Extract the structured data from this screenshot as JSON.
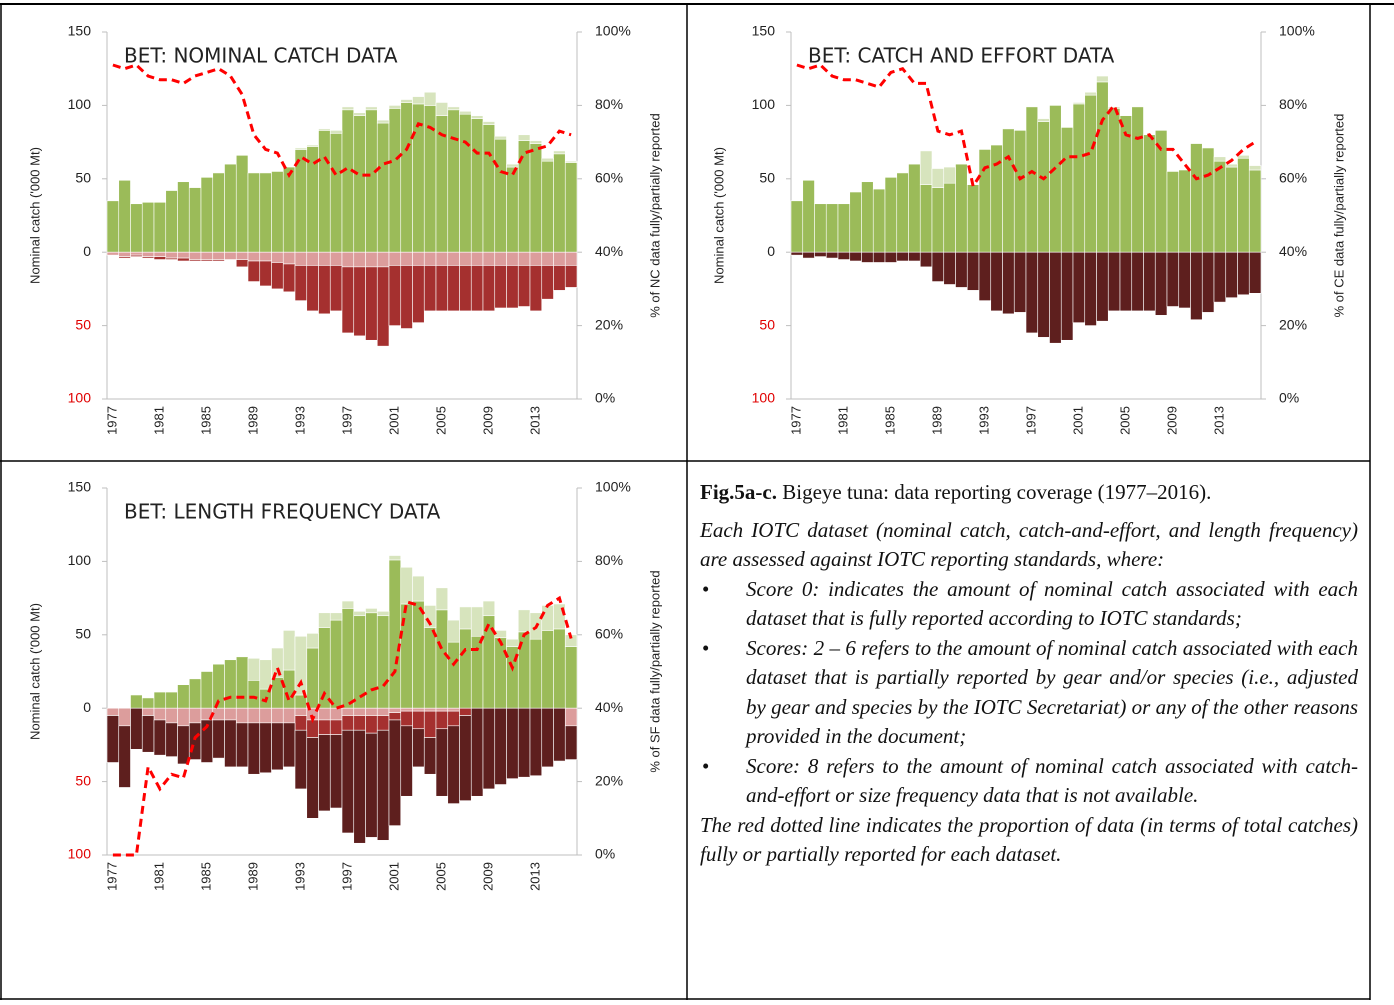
{
  "chart_data": [
    {
      "type": "bar",
      "stacked": true,
      "title": "BET: NOMINAL CATCH DATA",
      "y_label": "Nominal catch ('000 Mt)",
      "y2_label": "% of NC data fully/partially reported",
      "categories": [
        "1977",
        null,
        null,
        null,
        "1981",
        null,
        null,
        null,
        "1985",
        null,
        null,
        null,
        "1989",
        null,
        null,
        null,
        "1993",
        null,
        null,
        null,
        "1997",
        null,
        null,
        null,
        "2001",
        null,
        null,
        null,
        "2005",
        null,
        null,
        null,
        "2009",
        null,
        null,
        null,
        "2013",
        null,
        null,
        null
      ],
      "ylim": [
        -100,
        150
      ],
      "yticks": [
        {
          "value": -100,
          "label": "100",
          "color": "#e00000"
        },
        {
          "value": -50,
          "label": "50",
          "color": "#e00000"
        },
        0,
        50,
        100,
        150
      ],
      "y2lim": [
        0,
        100
      ],
      "y2ticks": [
        {
          "value": 0,
          "label": "0%"
        },
        {
          "value": 20,
          "label": "20%"
        },
        {
          "value": 40,
          "label": "40%"
        },
        {
          "value": 60,
          "label": "60%"
        },
        {
          "value": 80,
          "label": "80%"
        },
        {
          "value": 100,
          "label": "100%"
        }
      ],
      "series": [
        {
          "color": "#9bbb59",
          "values": [
            35,
            49,
            33,
            34,
            34,
            42,
            48,
            44,
            51,
            54,
            60,
            66,
            54,
            54,
            55,
            58,
            70,
            72,
            83,
            81,
            97,
            93,
            97,
            88,
            98,
            102,
            101,
            100,
            93,
            97,
            94,
            91,
            87,
            77,
            58,
            76,
            74,
            62,
            67,
            61
          ]
        },
        {
          "color": "#d7e4bd",
          "values": [
            0,
            0,
            0,
            0,
            0,
            0,
            0,
            0,
            0,
            0,
            0,
            0,
            0,
            0,
            0,
            0,
            1,
            1,
            1,
            2,
            2,
            2,
            2,
            2,
            2,
            2,
            5,
            9,
            9,
            2,
            2,
            2,
            2,
            2,
            2,
            4,
            2,
            2,
            2,
            1
          ]
        },
        {
          "color": "#dc9d9c",
          "values": [
            -2,
            -3,
            -2,
            -3,
            -3,
            -4,
            -4,
            -5,
            -5,
            -5,
            -5,
            -5,
            -6,
            -6,
            -7,
            -8,
            -9,
            -9,
            -9,
            -9,
            -10,
            -10,
            -10,
            -10,
            -9,
            -9,
            -9,
            -9,
            -9,
            -9,
            -9,
            -9,
            -9,
            -9,
            -9,
            -9,
            -9,
            -9,
            -9,
            -9
          ]
        },
        {
          "color": "#a5302f",
          "values": [
            0,
            -1,
            -1,
            -1,
            -2,
            -1,
            -2,
            -1,
            -1,
            -1,
            0,
            -5,
            -14,
            -17,
            -18,
            -19,
            -24,
            -31,
            -33,
            -31,
            -45,
            -47,
            -50,
            -54,
            -41,
            -43,
            -39,
            -31,
            -31,
            -31,
            -31,
            -31,
            -31,
            -29,
            -29,
            -28,
            -31,
            -23,
            -17,
            -15
          ]
        },
        {
          "type": "line",
          "axis": "y2",
          "color": "#ff0000",
          "linestyle": "dashed",
          "values": [
            91,
            90,
            91,
            88,
            87,
            87,
            86,
            88,
            89,
            90,
            88,
            83,
            72,
            68,
            67,
            61,
            66,
            64,
            66,
            61,
            63,
            61,
            61,
            64,
            65,
            68,
            75,
            74,
            72,
            71,
            70,
            67,
            67,
            62,
            61,
            67,
            68,
            69,
            73,
            72
          ]
        }
      ]
    },
    {
      "type": "bar",
      "stacked": true,
      "title": "BET: CATCH AND EFFORT DATA",
      "y_label": "Nominal catch ('000 Mt)",
      "y2_label": "% of CE data fully/partially reported",
      "categories": [
        "1977",
        null,
        null,
        null,
        "1981",
        null,
        null,
        null,
        "1985",
        null,
        null,
        null,
        "1989",
        null,
        null,
        null,
        "1993",
        null,
        null,
        null,
        "1997",
        null,
        null,
        null,
        "2001",
        null,
        null,
        null,
        "2005",
        null,
        null,
        null,
        "2009",
        null,
        null,
        null,
        "2013",
        null,
        null,
        null
      ],
      "ylim": [
        -100,
        150
      ],
      "yticks": [
        {
          "value": -100,
          "label": "100",
          "color": "#e00000"
        },
        {
          "value": -50,
          "label": "50",
          "color": "#e00000"
        },
        0,
        50,
        100,
        150
      ],
      "y2lim": [
        0,
        100
      ],
      "y2ticks": [
        {
          "value": 0,
          "label": "0%"
        },
        {
          "value": 20,
          "label": "20%"
        },
        {
          "value": 40,
          "label": "40%"
        },
        {
          "value": 60,
          "label": "60%"
        },
        {
          "value": 80,
          "label": "80%"
        },
        {
          "value": 100,
          "label": "100%"
        }
      ],
      "series": [
        {
          "color": "#9bbb59",
          "values": [
            35,
            49,
            33,
            33,
            33,
            41,
            48,
            43,
            51,
            54,
            60,
            46,
            44,
            47,
            60,
            46,
            70,
            73,
            84,
            83,
            99,
            89,
            100,
            85,
            101,
            107,
            116,
            98,
            93,
            99,
            80,
            83,
            55,
            56,
            74,
            71,
            62,
            58,
            64,
            56
          ]
        },
        {
          "color": "#d7e4bd",
          "values": [
            0,
            0,
            0,
            0,
            0,
            0,
            0,
            0,
            0,
            0,
            0,
            23,
            13,
            11,
            0,
            0,
            0,
            0,
            0,
            0,
            0,
            2,
            0,
            0,
            1,
            2,
            4,
            1,
            0,
            0,
            0,
            0,
            0,
            0,
            0,
            0,
            3,
            2,
            2,
            3
          ]
        },
        {
          "color": "#5e1f1e",
          "values": [
            -2,
            -4,
            -3,
            -4,
            -5,
            -6,
            -7,
            -7,
            -7,
            -6,
            -6,
            -10,
            -20,
            -22,
            -24,
            -26,
            -33,
            -40,
            -42,
            -41,
            -55,
            -58,
            -62,
            -60,
            -48,
            -50,
            -47,
            -40,
            -40,
            -40,
            -40,
            -43,
            -37,
            -38,
            -46,
            -41,
            -34,
            -31,
            -29,
            -28
          ]
        },
        {
          "type": "line",
          "axis": "y2",
          "color": "#ff0000",
          "linestyle": "dashed",
          "values": [
            91,
            90,
            91,
            88,
            87,
            87,
            86,
            85,
            89,
            90,
            86,
            86,
            73,
            72,
            73,
            58,
            63,
            64,
            66,
            60,
            62,
            60,
            63,
            66,
            66,
            67,
            76,
            80,
            72,
            71,
            72,
            68,
            68,
            64,
            60,
            61,
            63,
            65,
            68,
            70
          ]
        }
      ]
    },
    {
      "type": "bar",
      "stacked": true,
      "title": "BET: LENGTH FREQUENCY DATA",
      "y_label": "Nominal catch ('000 Mt)",
      "y2_label": "% of SF data fully/partially reported",
      "categories": [
        "1977",
        null,
        null,
        null,
        "1981",
        null,
        null,
        null,
        "1985",
        null,
        null,
        null,
        "1989",
        null,
        null,
        null,
        "1993",
        null,
        null,
        null,
        "1997",
        null,
        null,
        null,
        "2001",
        null,
        null,
        null,
        "2005",
        null,
        null,
        null,
        "2009",
        null,
        null,
        null,
        "2013",
        null,
        null,
        null
      ],
      "ylim": [
        -100,
        150
      ],
      "yticks": [
        {
          "value": -100,
          "label": "100",
          "color": "#e00000"
        },
        {
          "value": -50,
          "label": "50",
          "color": "#e00000"
        },
        0,
        50,
        100,
        150
      ],
      "y2lim": [
        0,
        100
      ],
      "y2ticks": [
        {
          "value": 0,
          "label": "0%"
        },
        {
          "value": 20,
          "label": "20%"
        },
        {
          "value": 40,
          "label": "40%"
        },
        {
          "value": 60,
          "label": "60%"
        },
        {
          "value": 80,
          "label": "80%"
        },
        {
          "value": 100,
          "label": "100%"
        }
      ],
      "series": [
        {
          "color": "#9bbb59",
          "values": [
            0,
            0,
            9,
            7,
            11,
            11,
            16,
            20,
            25,
            30,
            33,
            35,
            19,
            13,
            21,
            26,
            9,
            41,
            55,
            60,
            68,
            63,
            65,
            63,
            101,
            71,
            73,
            55,
            67,
            45,
            54,
            49,
            63,
            48,
            42,
            52,
            47,
            53,
            54,
            42
          ]
        },
        {
          "color": "#d7e4bd",
          "values": [
            0,
            0,
            0,
            0,
            0,
            0,
            0,
            0,
            0,
            0,
            0,
            0,
            15,
            20,
            20,
            27,
            40,
            10,
            10,
            5,
            5,
            3,
            3,
            3,
            3,
            25,
            17,
            15,
            15,
            15,
            15,
            20,
            10,
            5,
            5,
            15,
            18,
            17,
            17,
            8
          ]
        },
        {
          "color": "#dc9d9c",
          "values": [
            -5,
            -12,
            0,
            -5,
            -8,
            -10,
            -12,
            -10,
            -8,
            -8,
            -8,
            -10,
            -10,
            -10,
            -10,
            -10,
            -5,
            -8,
            -8,
            -8,
            -5,
            -5,
            -5,
            -5,
            -3,
            -2,
            -2,
            -2,
            -2,
            -2,
            0,
            0,
            0,
            0,
            0,
            0,
            0,
            0,
            0,
            -12
          ]
        },
        {
          "color": "#a5302f",
          "values": [
            0,
            0,
            0,
            0,
            0,
            0,
            0,
            0,
            0,
            0,
            0,
            0,
            0,
            0,
            0,
            0,
            -10,
            -12,
            -10,
            -10,
            -10,
            -10,
            -12,
            -10,
            -5,
            -10,
            -12,
            -18,
            -12,
            -10,
            -5,
            0,
            0,
            0,
            0,
            0,
            0,
            0,
            0,
            0
          ]
        },
        {
          "color": "#5e1f1e",
          "values": [
            -32,
            -42,
            -28,
            -25,
            -24,
            -23,
            -26,
            -25,
            -29,
            -26,
            -32,
            -30,
            -35,
            -34,
            -32,
            -30,
            -40,
            -55,
            -52,
            -50,
            -70,
            -77,
            -71,
            -75,
            -72,
            -48,
            -26,
            -25,
            -46,
            -53,
            -58,
            -60,
            -55,
            -52,
            -48,
            -47,
            -46,
            -40,
            -36,
            -23
          ]
        },
        {
          "type": "line",
          "axis": "y2",
          "color": "#ff0000",
          "linestyle": "dashed",
          "values": [
            0,
            0,
            0,
            24,
            18,
            22,
            21,
            32,
            35,
            42,
            43,
            43,
            43,
            42,
            51,
            42,
            47,
            37,
            44,
            40,
            41,
            43,
            45,
            46,
            50,
            69,
            68,
            63,
            56,
            52,
            56,
            56,
            63,
            58,
            51,
            60,
            62,
            68,
            70,
            59
          ]
        }
      ]
    }
  ],
  "caption": {
    "label": "Fig.5a-c.",
    "text": " Bigeye tuna: data reporting coverage (1977–2016).",
    "intro": "Each IOTC dataset (nominal catch, catch-and-effort, and length frequency) are assessed against IOTC reporting standards, where:",
    "bullets": [
      "Score 0: indicates the amount of nominal catch associated with each dataset that is fully reported according to IOTC standards;",
      "Scores: 2 – 6 refers to the amount of nominal catch associated with each dataset that is partially reported by gear and/or species (i.e., adjusted by gear and species by the IOTC Secretariat) or any of the other reasons provided in the document;",
      "Score: 8 refers to the amount of nominal catch associated with catch-and-effort or size frequency data that is not available."
    ],
    "note": "The red dotted line indicates the proportion of data (in terms of total catches) fully or partially reported for each dataset."
  }
}
